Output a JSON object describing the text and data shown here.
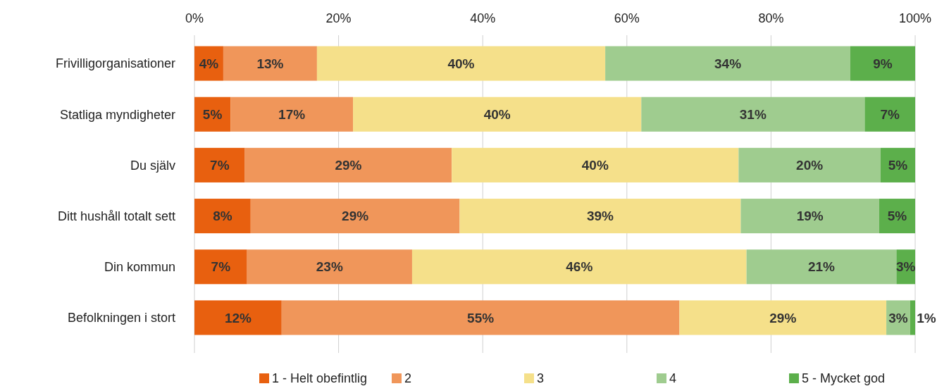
{
  "chart_data": {
    "type": "bar",
    "orientation": "horizontal",
    "stacked": true,
    "legend": "bottom",
    "grid": "x",
    "categories": [
      "Frivilligorganisationer",
      "Statliga myndigheter",
      "Du själv",
      "Ditt hushåll totalt sett",
      "Din kommun",
      "Befolkningen i stort"
    ],
    "xlim": [
      0,
      100
    ],
    "xticks": [
      {
        "value": 0,
        "label": "0%"
      },
      {
        "value": 20,
        "label": "20%"
      },
      {
        "value": 40,
        "label": "40%"
      },
      {
        "value": 60,
        "label": "60%"
      },
      {
        "value": 80,
        "label": "80%"
      },
      {
        "value": 100,
        "label": "100%"
      }
    ],
    "series": [
      {
        "name": "1 - Helt obefintlig",
        "color": "#e8600f",
        "values": [
          4,
          5,
          7,
          7.8,
          7.3,
          12.1
        ],
        "value_labels": [
          "4%",
          "5%",
          "7%",
          "8%",
          "7%",
          "12%"
        ]
      },
      {
        "name": "2",
        "color": "#f0965a",
        "values": [
          13,
          17,
          28.7,
          29,
          22.9,
          55.2
        ],
        "value_labels": [
          "13%",
          "17%",
          "29%",
          "29%",
          "23%",
          "55%"
        ]
      },
      {
        "name": "3",
        "color": "#f5e08a",
        "values": [
          40,
          40,
          39.8,
          39,
          46.4,
          28.7
        ],
        "value_labels": [
          "40%",
          "40%",
          "40%",
          "39%",
          "46%",
          "29%"
        ]
      },
      {
        "name": "4",
        "color": "#9fcc8f",
        "values": [
          34,
          31,
          19.7,
          19.2,
          20.8,
          3.3
        ],
        "value_labels": [
          "34%",
          "31%",
          "20%",
          "19%",
          "21%",
          "3%"
        ]
      },
      {
        "name": "5 - Mycket god",
        "color": "#5caf4b",
        "values": [
          9,
          7,
          4.8,
          5,
          2.6,
          0.7
        ],
        "value_labels": [
          "9%",
          "7%",
          "5%",
          "5%",
          "3%",
          "1%"
        ]
      }
    ]
  }
}
